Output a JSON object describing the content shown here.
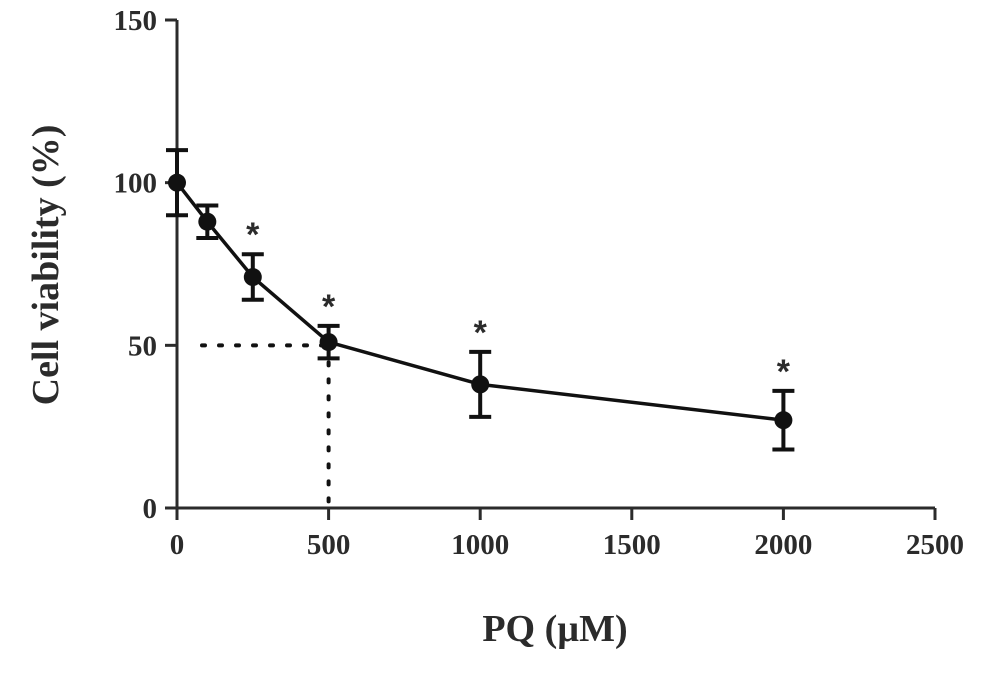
{
  "chart_data": {
    "type": "line",
    "xlabel": "PQ (µM)",
    "ylabel": "Cell viability (%)",
    "xlim": [
      0,
      2500
    ],
    "ylim": [
      0,
      150
    ],
    "x_ticks": [
      "0",
      "500",
      "1000",
      "1500",
      "2000",
      "2500"
    ],
    "y_ticks": [
      "0",
      "50",
      "100",
      "150"
    ],
    "series": [
      {
        "x": [
          0,
          100,
          250,
          500,
          1000,
          2000
        ],
        "y": [
          100,
          88,
          71,
          51,
          38,
          27
        ],
        "error": [
          10,
          5,
          7,
          5,
          10,
          9
        ],
        "significance": [
          "",
          "",
          "*",
          "*",
          "*",
          "*"
        ]
      }
    ],
    "reference_lines": {
      "y": 50,
      "x": 500,
      "style": "dotted"
    },
    "grid": false,
    "legend": "none",
    "colors": {
      "line": "#111111",
      "axis": "#2b2b2b"
    }
  }
}
